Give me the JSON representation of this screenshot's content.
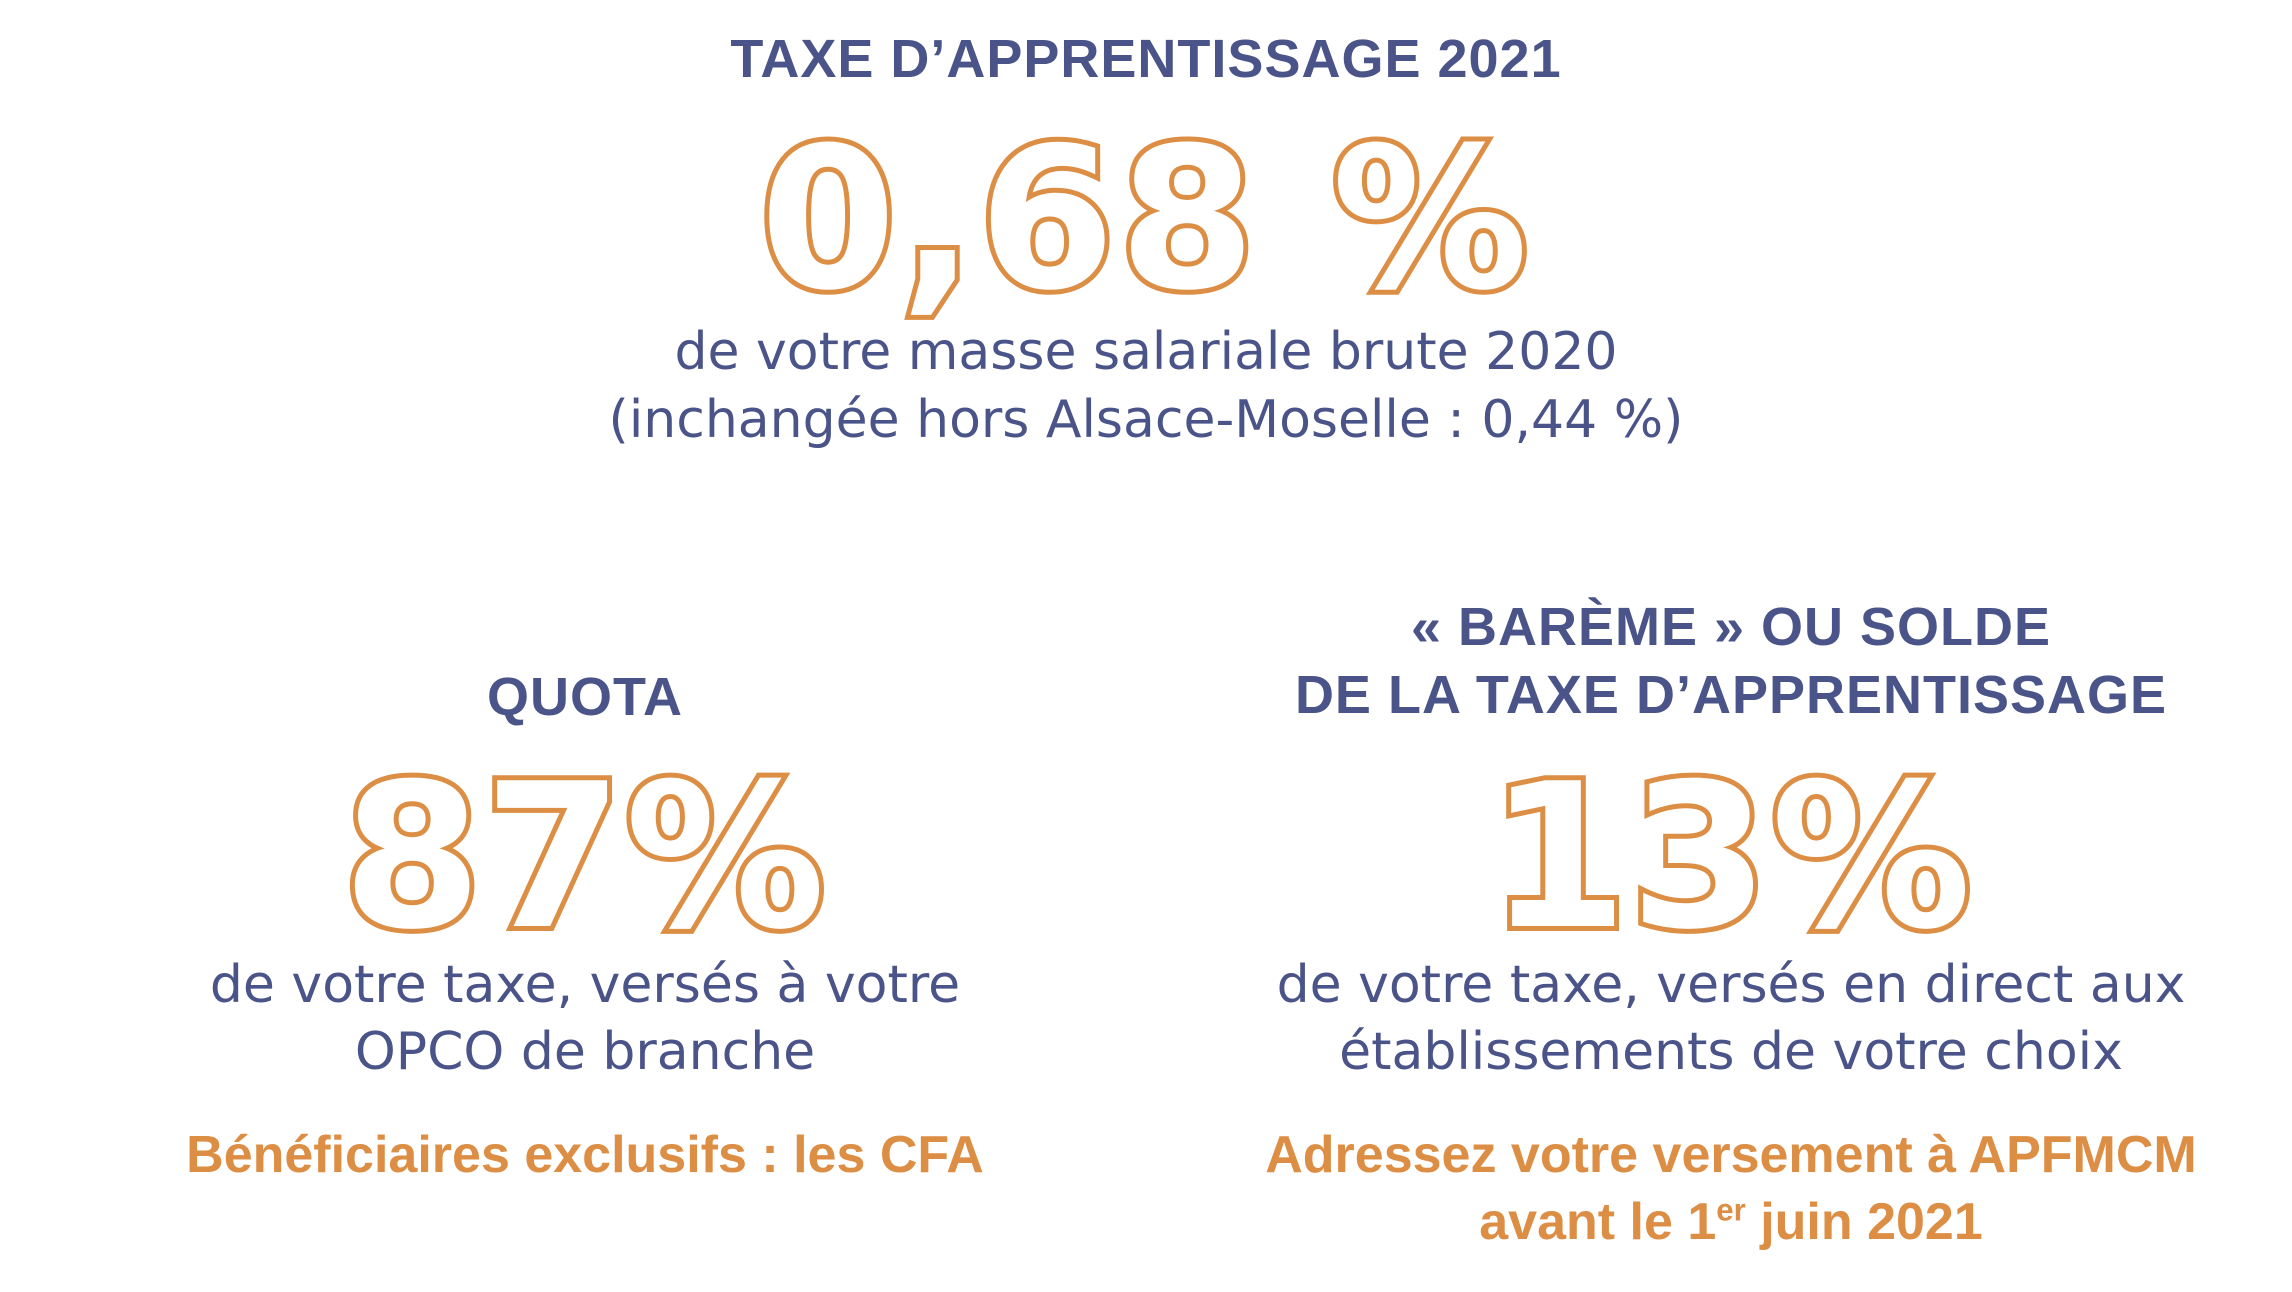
{
  "top": {
    "title": "TAXE D’APPRENTISSAGE 2021",
    "rate": "0,68 %",
    "desc_line1": "de votre masse salariale brute 2020",
    "desc_line2": "(inchangée hors Alsace-Moselle : 0,44 %)"
  },
  "quota": {
    "title": "QUOTA",
    "rate": "87%",
    "desc_line1": "de votre taxe, versés à votre",
    "desc_line2": "OPCO de branche",
    "note": "Bénéficiaires exclusifs : les CFA"
  },
  "bareme": {
    "title_line1": "« BARÈME » OU SOLDE",
    "title_line2": "DE LA TAXE D’APPRENTISSAGE",
    "rate": "13%",
    "desc_line1": "de votre taxe, versés en direct aux",
    "desc_line2": "établissements de votre choix",
    "note_line1": "Adressez votre versement à APFMCM",
    "note_line2_prefix": "avant le 1",
    "note_line2_sup": "er",
    "note_line2_suffix": " juin 2021"
  },
  "colors": {
    "navy": "#4a5488",
    "orange": "#dc8e45",
    "background": "#ffffff"
  }
}
